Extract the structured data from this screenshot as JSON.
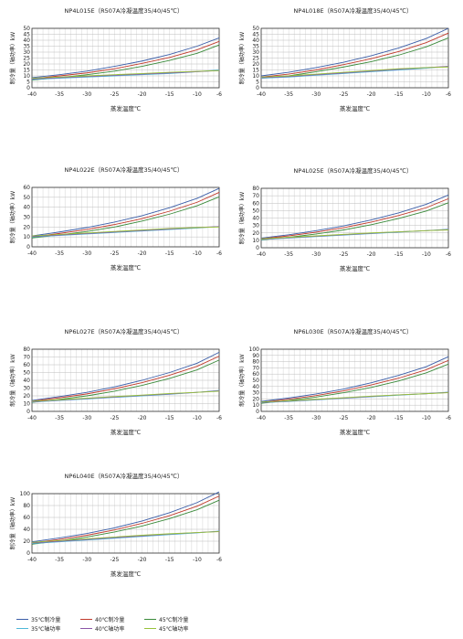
{
  "series_style": [
    {
      "key": "c35",
      "name": "35℃制冷量",
      "color": "#3b5ea8"
    },
    {
      "key": "c40",
      "name": "40℃制冷量",
      "color": "#c0392b"
    },
    {
      "key": "c45",
      "name": "45℃制冷量",
      "color": "#3a8a3a"
    },
    {
      "key": "p35",
      "name": "35℃轴功率",
      "color": "#4fb8d8"
    },
    {
      "key": "p40",
      "name": "40℃轴功率",
      "color": "#8a55a8"
    },
    {
      "key": "p45",
      "name": "45℃轴功率",
      "color": "#98c23a"
    }
  ],
  "legend": {
    "row1": [
      "35℃制冷量",
      "40℃制冷量",
      "45℃制冷量"
    ],
    "row2": [
      "35℃轴功率",
      "40℃轴功率",
      "45℃轴功率"
    ]
  },
  "chart_data": [
    {
      "type": "line",
      "title": "NP4L015E（R507A冷凝温度35/40/45℃）",
      "xlabel": "蒸发温度℃",
      "ylabel": "制冷量（轴功率）kW",
      "xlim": [
        -40,
        -6
      ],
      "ylim": [
        0,
        50
      ],
      "xticks": [
        -40,
        -35,
        -30,
        -25,
        -20,
        -15,
        -10,
        -6
      ],
      "yticks": [
        0,
        5,
        10,
        15,
        20,
        25,
        30,
        35,
        40,
        45,
        50
      ],
      "grid": true,
      "x": [
        -40,
        -35,
        -30,
        -25,
        -20,
        -15,
        -10,
        -6
      ],
      "series": [
        {
          "name": "35℃制冷量",
          "values": [
            8.5,
            11,
            14,
            18,
            22.5,
            28,
            35,
            42
          ]
        },
        {
          "name": "40℃制冷量",
          "values": [
            7.5,
            10,
            12.5,
            16,
            20.5,
            25.5,
            32,
            39
          ]
        },
        {
          "name": "45℃制冷量",
          "values": [
            6.5,
            8.5,
            11,
            14,
            18,
            23,
            29,
            36
          ]
        },
        {
          "name": "35℃轴功率",
          "values": [
            7,
            8,
            9,
            10,
            11,
            12,
            13.5,
            15
          ]
        },
        {
          "name": "40℃轴功率",
          "values": [
            7.5,
            8.5,
            9.5,
            10.5,
            11.5,
            12.5,
            13.5,
            14.5
          ]
        },
        {
          "name": "45℃轴功率",
          "values": [
            8,
            9,
            10,
            11,
            12,
            13,
            13.8,
            14.5
          ]
        }
      ]
    },
    {
      "type": "line",
      "title": "NP4L018E（R507A冷凝温度35/40/45℃）",
      "xlabel": "蒸发温度℃",
      "ylabel": "制冷量（轴功率）kW",
      "xlim": [
        -40,
        -6
      ],
      "ylim": [
        0,
        50
      ],
      "xticks": [
        -40,
        -35,
        -30,
        -25,
        -20,
        -15,
        -10,
        -6
      ],
      "yticks": [
        0,
        5,
        10,
        15,
        20,
        25,
        30,
        35,
        40,
        45,
        50
      ],
      "grid": true,
      "x": [
        -40,
        -35,
        -30,
        -25,
        -20,
        -15,
        -10,
        -6
      ],
      "series": [
        {
          "name": "35℃制冷量",
          "values": [
            10,
            13,
            17,
            21.5,
            27,
            33.5,
            41.5,
            50
          ]
        },
        {
          "name": "40℃制冷量",
          "values": [
            9,
            11.5,
            15,
            19.5,
            24.5,
            30.5,
            38,
            46
          ]
        },
        {
          "name": "45℃制冷量",
          "values": [
            8,
            10,
            13.5,
            17.5,
            22,
            27.5,
            34.5,
            42
          ]
        },
        {
          "name": "35℃轴功率",
          "values": [
            8,
            9,
            10.5,
            12,
            13.5,
            15,
            16.5,
            18
          ]
        },
        {
          "name": "40℃轴功率",
          "values": [
            8.5,
            9.5,
            11,
            12.5,
            14,
            15.5,
            17,
            18
          ]
        },
        {
          "name": "45℃轴功率",
          "values": [
            9,
            10,
            11.5,
            13,
            14.5,
            16,
            17,
            17.5
          ]
        }
      ]
    },
    {
      "type": "line",
      "title": "NP4L022E（R507A冷凝温度35/40/45℃）",
      "xlabel": "蒸发温度℃",
      "ylabel": "制冷量（轴功率）kW",
      "xlim": [
        -40,
        -6
      ],
      "ylim": [
        0,
        60
      ],
      "xticks": [
        -40,
        -35,
        -30,
        -25,
        -20,
        -15,
        -10,
        -6
      ],
      "yticks": [
        0,
        10,
        20,
        30,
        40,
        50,
        60
      ],
      "grid": true,
      "x": [
        -40,
        -35,
        -30,
        -25,
        -20,
        -15,
        -10,
        -6
      ],
      "series": [
        {
          "name": "35℃制冷量",
          "values": [
            11,
            15,
            19.5,
            25,
            31.5,
            39.5,
            49,
            59
          ]
        },
        {
          "name": "40℃制冷量",
          "values": [
            10,
            13.5,
            17.5,
            22.5,
            28.5,
            36,
            45,
            55
          ]
        },
        {
          "name": "45℃制冷量",
          "values": [
            9,
            12,
            15.5,
            20,
            26,
            33,
            41.5,
            50.5
          ]
        },
        {
          "name": "35℃轴功率",
          "values": [
            10,
            11.5,
            13,
            14.5,
            16,
            17.5,
            19,
            20.5
          ]
        },
        {
          "name": "40℃轴功率",
          "values": [
            10.5,
            12,
            13.5,
            15,
            16.5,
            18,
            19.5,
            20.5
          ]
        },
        {
          "name": "45℃轴功率",
          "values": [
            11,
            12.5,
            14,
            15.5,
            17,
            18.5,
            19.5,
            20
          ]
        }
      ]
    },
    {
      "type": "line",
      "title": "NP4L025E（R507A冷凝温度35/40/45℃）",
      "xlabel": "蒸发温度℃",
      "ylabel": "制冷量（轴功率）kW",
      "xlim": [
        -40,
        -6
      ],
      "ylim": [
        0,
        80
      ],
      "xticks": [
        -40,
        -35,
        -30,
        -25,
        -20,
        -15,
        -10,
        -6
      ],
      "yticks": [
        0,
        10,
        20,
        30,
        40,
        50,
        60,
        70,
        80
      ],
      "grid": true,
      "x": [
        -40,
        -35,
        -30,
        -25,
        -20,
        -15,
        -10,
        -6
      ],
      "series": [
        {
          "name": "35℃制冷量",
          "values": [
            13,
            17.5,
            23,
            29.5,
            37.5,
            47,
            58.5,
            71
          ]
        },
        {
          "name": "40℃制冷量",
          "values": [
            12,
            16,
            21,
            27,
            34.5,
            43.5,
            54,
            66
          ]
        },
        {
          "name": "45℃制冷量",
          "values": [
            10.5,
            14,
            18.5,
            24,
            31,
            39.5,
            49.5,
            60.5
          ]
        },
        {
          "name": "35℃轴功率",
          "values": [
            11,
            13,
            15,
            17,
            19,
            21,
            23,
            25
          ]
        },
        {
          "name": "40℃轴功率",
          "values": [
            11.5,
            13.5,
            15.5,
            17.5,
            19.5,
            21.5,
            23,
            24.5
          ]
        },
        {
          "name": "45℃轴功率",
          "values": [
            12,
            14,
            16,
            18,
            20,
            21.5,
            23,
            24
          ]
        }
      ]
    },
    {
      "type": "line",
      "title": "NP6L027E（R507A冷凝温度35/40/45℃）",
      "xlabel": "蒸发温度℃",
      "ylabel": "制冷量（轴功率）kW",
      "xlim": [
        -40,
        -6
      ],
      "ylim": [
        0,
        80
      ],
      "xticks": [
        -40,
        -35,
        -30,
        -25,
        -20,
        -15,
        -10,
        -6
      ],
      "yticks": [
        0,
        10,
        20,
        30,
        40,
        50,
        60,
        70,
        80
      ],
      "grid": true,
      "x": [
        -40,
        -35,
        -30,
        -25,
        -20,
        -15,
        -10,
        -6
      ],
      "series": [
        {
          "name": "35℃制冷量",
          "values": [
            14,
            19,
            24.5,
            31.5,
            40,
            50,
            62,
            76
          ]
        },
        {
          "name": "40℃制冷量",
          "values": [
            13,
            17.5,
            22.5,
            29,
            37,
            46.5,
            58,
            71
          ]
        },
        {
          "name": "45℃制冷量",
          "values": [
            11.5,
            15.5,
            20,
            26,
            33.5,
            42.5,
            53.5,
            66
          ]
        },
        {
          "name": "35℃轴功率",
          "values": [
            12,
            14,
            16,
            18,
            20,
            22,
            24.5,
            27
          ]
        },
        {
          "name": "40℃轴功率",
          "values": [
            12.5,
            14.5,
            16.5,
            18.5,
            20.5,
            22.5,
            24.5,
            26.5
          ]
        },
        {
          "name": "45℃轴功率",
          "values": [
            13,
            15,
            17,
            19,
            21,
            23,
            24.5,
            26
          ]
        }
      ]
    },
    {
      "type": "line",
      "title": "NP6L030E（R507A冷凝温度35/40/45℃）",
      "xlabel": "蒸发温度℃",
      "ylabel": "制冷量（轴功率）kW",
      "xlim": [
        -40,
        -6
      ],
      "ylim": [
        0,
        100
      ],
      "xticks": [
        -40,
        -35,
        -30,
        -25,
        -20,
        -15,
        -10,
        -6
      ],
      "yticks": [
        0,
        10,
        20,
        30,
        40,
        50,
        60,
        70,
        80,
        90,
        100
      ],
      "grid": true,
      "x": [
        -40,
        -35,
        -30,
        -25,
        -20,
        -15,
        -10,
        -6
      ],
      "series": [
        {
          "name": "35℃制冷量",
          "values": [
            16,
            21.5,
            28,
            36,
            46,
            58,
            72,
            88
          ]
        },
        {
          "name": "40℃制冷量",
          "values": [
            14.5,
            19.5,
            25.5,
            33,
            42.5,
            53.5,
            67,
            82
          ]
        },
        {
          "name": "45℃制冷量",
          "values": [
            13,
            17.5,
            23,
            30,
            38.5,
            49,
            62,
            76
          ]
        },
        {
          "name": "35℃轴功率",
          "values": [
            14,
            16,
            18.5,
            21,
            23.5,
            26,
            28.5,
            31
          ]
        },
        {
          "name": "40℃轴功率",
          "values": [
            14.5,
            16.5,
            19,
            21.5,
            24,
            26.5,
            28.5,
            30.5
          ]
        },
        {
          "name": "45℃轴功率",
          "values": [
            15,
            17,
            19.5,
            22,
            24.5,
            26.5,
            28.5,
            30
          ]
        }
      ]
    },
    {
      "type": "line",
      "title": "NP6L040E（R507A冷凝温度35/40/45℃）",
      "xlabel": "蒸发温度℃",
      "ylabel": "制冷量（轴功率）kW",
      "xlim": [
        -40,
        -6
      ],
      "ylim": [
        0,
        100
      ],
      "xticks": [
        -40,
        -35,
        -30,
        -25,
        -20,
        -15,
        -10,
        -6
      ],
      "yticks": [
        0,
        20,
        40,
        60,
        80,
        100
      ],
      "grid": true,
      "x": [
        -40,
        -35,
        -30,
        -25,
        -20,
        -15,
        -10,
        -6
      ],
      "series": [
        {
          "name": "35℃制冷量",
          "values": [
            19,
            25.5,
            33,
            42.5,
            54,
            68,
            85,
            103
          ]
        },
        {
          "name": "40℃制冷量",
          "values": [
            17,
            23,
            30,
            39,
            50,
            63,
            79,
            96
          ]
        },
        {
          "name": "45℃制冷量",
          "values": [
            15,
            20.5,
            27,
            35.5,
            45.5,
            58,
            73,
            89
          ]
        },
        {
          "name": "35℃轴功率",
          "values": [
            16,
            19,
            22,
            25,
            28,
            31,
            34,
            37
          ]
        },
        {
          "name": "40℃轴功率",
          "values": [
            17,
            20,
            23,
            26,
            29,
            32,
            34.5,
            36.5
          ]
        },
        {
          "name": "45℃轴功率",
          "values": [
            18,
            21,
            24,
            27,
            30,
            32.5,
            34.5,
            36
          ]
        }
      ]
    }
  ]
}
